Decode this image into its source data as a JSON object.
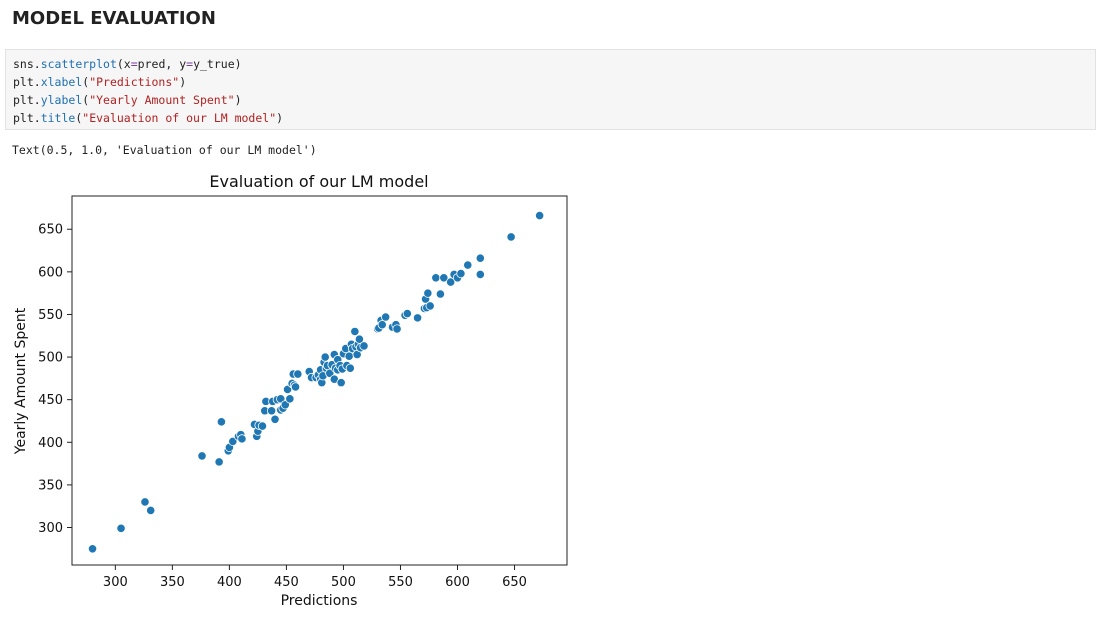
{
  "section": {
    "title": "MODEL EVALUATION"
  },
  "code": {
    "lines": [
      [
        {
          "t": "sns.",
          "c": "plain"
        },
        {
          "t": "scatterplot",
          "c": "fn"
        },
        {
          "t": "(x",
          "c": "plain"
        },
        {
          "t": "=",
          "c": "op"
        },
        {
          "t": "pred, y",
          "c": "plain"
        },
        {
          "t": "=",
          "c": "op"
        },
        {
          "t": "y_true)",
          "c": "plain"
        }
      ],
      [
        {
          "t": "plt.",
          "c": "plain"
        },
        {
          "t": "xlabel",
          "c": "fn"
        },
        {
          "t": "(",
          "c": "plain"
        },
        {
          "t": "\"Predictions\"",
          "c": "str"
        },
        {
          "t": ")",
          "c": "plain"
        }
      ],
      [
        {
          "t": "plt.",
          "c": "plain"
        },
        {
          "t": "ylabel",
          "c": "fn"
        },
        {
          "t": "(",
          "c": "plain"
        },
        {
          "t": "\"Yearly Amount Spent\"",
          "c": "str"
        },
        {
          "t": ")",
          "c": "plain"
        }
      ],
      [
        {
          "t": "plt.",
          "c": "plain"
        },
        {
          "t": "title",
          "c": "fn"
        },
        {
          "t": "(",
          "c": "plain"
        },
        {
          "t": "\"Evaluation of our LM model\"",
          "c": "str"
        },
        {
          "t": ")",
          "c": "plain"
        }
      ]
    ]
  },
  "output": {
    "text": "Text(0.5, 1.0, 'Evaluation of our LM model')"
  },
  "colors": {
    "point": "#1f77b4",
    "fn": "#1f6fb2",
    "str": "#b22222",
    "op": "#7a3e9d"
  },
  "chart_data": {
    "type": "scatter",
    "title": "Evaluation of our LM model",
    "xlabel": "Predictions",
    "ylabel": "Yearly Amount Spent",
    "xlim": [
      262,
      696
    ],
    "ylim": [
      256,
      689
    ],
    "xticks": [
      300,
      350,
      400,
      450,
      500,
      550,
      600,
      650
    ],
    "yticks": [
      300,
      350,
      400,
      450,
      500,
      550,
      600,
      650
    ],
    "grid": false,
    "x": [
      280,
      305,
      326,
      331,
      376,
      391,
      393,
      399,
      400,
      403,
      408,
      410,
      411,
      422,
      424,
      425,
      426,
      429,
      431,
      432,
      437,
      438,
      440,
      442,
      445,
      445,
      447,
      449,
      451,
      453,
      455,
      456,
      457,
      458,
      460,
      470,
      472,
      476,
      478,
      480,
      480,
      481,
      482,
      483,
      484,
      485,
      486,
      488,
      490,
      492,
      492,
      493,
      495,
      495,
      497,
      498,
      499,
      500,
      502,
      503,
      505,
      506,
      507,
      508,
      510,
      511,
      512,
      513,
      514,
      515,
      518,
      530,
      531,
      533,
      534,
      537,
      543,
      546,
      547,
      554,
      556,
      565,
      571,
      572,
      573,
      574,
      576,
      581,
      585,
      588,
      594,
      597,
      600,
      603,
      609,
      620,
      620,
      647,
      672
    ],
    "y": [
      275,
      299,
      330,
      320,
      384,
      377,
      424,
      390,
      394,
      401,
      407,
      409,
      404,
      421,
      407,
      413,
      420,
      419,
      437,
      448,
      437,
      448,
      427,
      450,
      438,
      451,
      440,
      444,
      462,
      451,
      469,
      480,
      467,
      465,
      480,
      483,
      476,
      476,
      479,
      485,
      474,
      470,
      478,
      494,
      500,
      487,
      490,
      481,
      491,
      474,
      503,
      487,
      497,
      485,
      490,
      470,
      486,
      504,
      510,
      490,
      501,
      487,
      515,
      510,
      530,
      512,
      503,
      515,
      521,
      511,
      513,
      533,
      534,
      543,
      538,
      547,
      535,
      538,
      533,
      549,
      551,
      546,
      557,
      568,
      558,
      575,
      560,
      593,
      574,
      593,
      588,
      597,
      593,
      598,
      608,
      597,
      616,
      641,
      666
    ]
  }
}
